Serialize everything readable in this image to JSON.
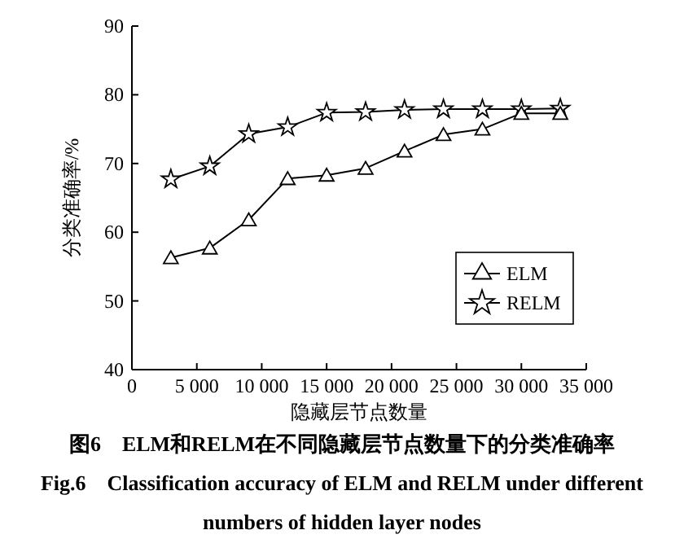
{
  "chart_data": {
    "type": "line",
    "title": "图6　ELM和RELM在不同隐藏层节点数量下的分类准确率",
    "subtitle": "Fig.6　Classification accuracy of ELM and RELM under different numbers of hidden layer nodes",
    "xlabel": "隐藏层节点数量",
    "ylabel": "分类准确率/%",
    "x": [
      3000,
      6000,
      9000,
      12000,
      15000,
      18000,
      21000,
      24000,
      27000,
      30000,
      33000
    ],
    "series": [
      {
        "name": "ELM",
        "color": "#000000",
        "marker": "triangle",
        "values": [
          56.3,
          57.7,
          61.8,
          67.8,
          68.3,
          69.3,
          71.8,
          74.2,
          75.0,
          77.3,
          77.3
        ]
      },
      {
        "name": "RELM",
        "color": "#000000",
        "marker": "star",
        "values": [
          67.7,
          69.6,
          74.3,
          75.3,
          77.4,
          77.5,
          77.8,
          77.9,
          77.9,
          77.9,
          78.0
        ]
      }
    ],
    "xlim": [
      0,
      35000
    ],
    "xticks": [
      0,
      {
        "value": 5000,
        "label": "5 000"
      },
      {
        "value": 10000,
        "label": "10 000"
      },
      {
        "value": 15000,
        "label": "15 000"
      },
      {
        "value": 20000,
        "label": "20 000"
      },
      {
        "value": 25000,
        "label": "25 000"
      },
      {
        "value": 30000,
        "label": "30 000"
      },
      {
        "value": 35000,
        "label": "35 000"
      }
    ],
    "ylim": [
      40,
      90
    ],
    "yticks": [
      40,
      50,
      60,
      70,
      80,
      90
    ],
    "grid": false,
    "legend": "bottom right",
    "line_style": "solid"
  }
}
